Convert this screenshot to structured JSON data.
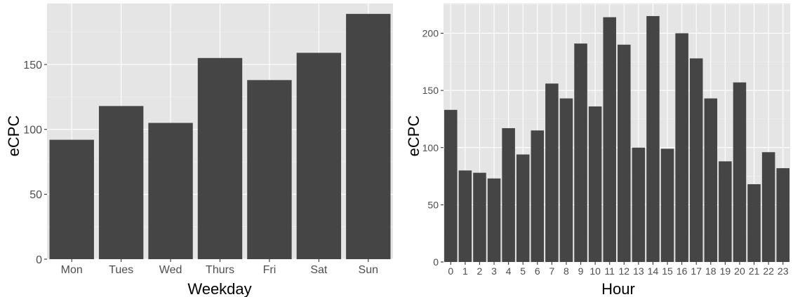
{
  "chart_data": [
    {
      "type": "bar",
      "xlabel": "Weekday",
      "ylabel": "eCPC",
      "categories": [
        "Mon",
        "Tues",
        "Wed",
        "Thurs",
        "Fri",
        "Sat",
        "Sun"
      ],
      "values": [
        92,
        118,
        105,
        155,
        138,
        159,
        189
      ],
      "ylim": [
        0,
        197
      ],
      "yticks": [
        0,
        50,
        100,
        150
      ],
      "grid": true,
      "bar_color": "#454545",
      "panel_color": "#e5e5e5"
    },
    {
      "type": "bar",
      "xlabel": "Hour",
      "ylabel": "eCPC",
      "categories": [
        "0",
        "1",
        "2",
        "3",
        "4",
        "5",
        "6",
        "7",
        "8",
        "9",
        "10",
        "11",
        "12",
        "13",
        "14",
        "15",
        "16",
        "17",
        "18",
        "19",
        "20",
        "21",
        "22",
        "23"
      ],
      "values": [
        133,
        80,
        78,
        73,
        117,
        94,
        115,
        156,
        143,
        191,
        136,
        214,
        190,
        100,
        215,
        99,
        200,
        178,
        143,
        88,
        157,
        68,
        96,
        82
      ],
      "ylim": [
        0,
        226
      ],
      "yticks": [
        0,
        50,
        100,
        150,
        200
      ],
      "grid": true,
      "bar_color": "#454545",
      "panel_color": "#e5e5e5"
    }
  ]
}
